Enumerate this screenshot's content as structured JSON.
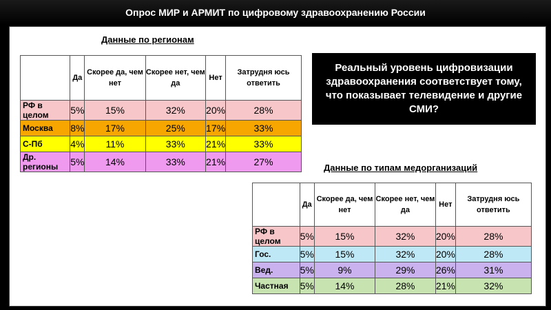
{
  "title": "Опрос МИР и АРМИТ по цифровому здравоохранению России",
  "callout": "Реальный уровень цифровизации здравоохранения соответствует тому, что показывает телевидение и другие СМИ?",
  "regions_table": {
    "heading": "Данные по регионам",
    "columns": [
      "",
      "Да",
      "Скорее да, чем нет",
      "Скорее нет, чем да",
      "Нет",
      "Затрудня юсь ответить"
    ],
    "rows": [
      {
        "label": "РФ в целом",
        "color": "#f6c6c9",
        "values": [
          "5%",
          "15%",
          "32%",
          "20%",
          "28%"
        ]
      },
      {
        "label": "Москва",
        "color": "#f7a600",
        "values": [
          "8%",
          "17%",
          "25%",
          "17%",
          "33%"
        ]
      },
      {
        "label": "С-Пб",
        "color": "#ffff00",
        "values": [
          "4%",
          "11%",
          "33%",
          "21%",
          "33%"
        ]
      },
      {
        "label": "Др. регионы",
        "color": "#ef99ef",
        "values": [
          "5%",
          "14%",
          "33%",
          "21%",
          "27%"
        ]
      }
    ]
  },
  "orgs_table": {
    "heading": "Данные по типам медорганизаций",
    "columns": [
      "",
      "Да",
      "Скорее да, чем нет",
      "Скорее нет, чем да",
      "Нет",
      "Затрудня юсь ответить"
    ],
    "rows": [
      {
        "label": "РФ в целом",
        "color": "#f6c6c9",
        "values": [
          "5%",
          "15%",
          "32%",
          "20%",
          "28%"
        ]
      },
      {
        "label": "Гос.",
        "color": "#bfe8f6",
        "values": [
          "5%",
          "15%",
          "32%",
          "20%",
          "28%"
        ]
      },
      {
        "label": "Вед.",
        "color": "#c9b2ee",
        "values": [
          "5%",
          "9%",
          "29%",
          "26%",
          "31%"
        ]
      },
      {
        "label": "Частная",
        "color": "#c6e3b0",
        "values": [
          "5%",
          "14%",
          "28%",
          "21%",
          "32%"
        ]
      }
    ]
  }
}
